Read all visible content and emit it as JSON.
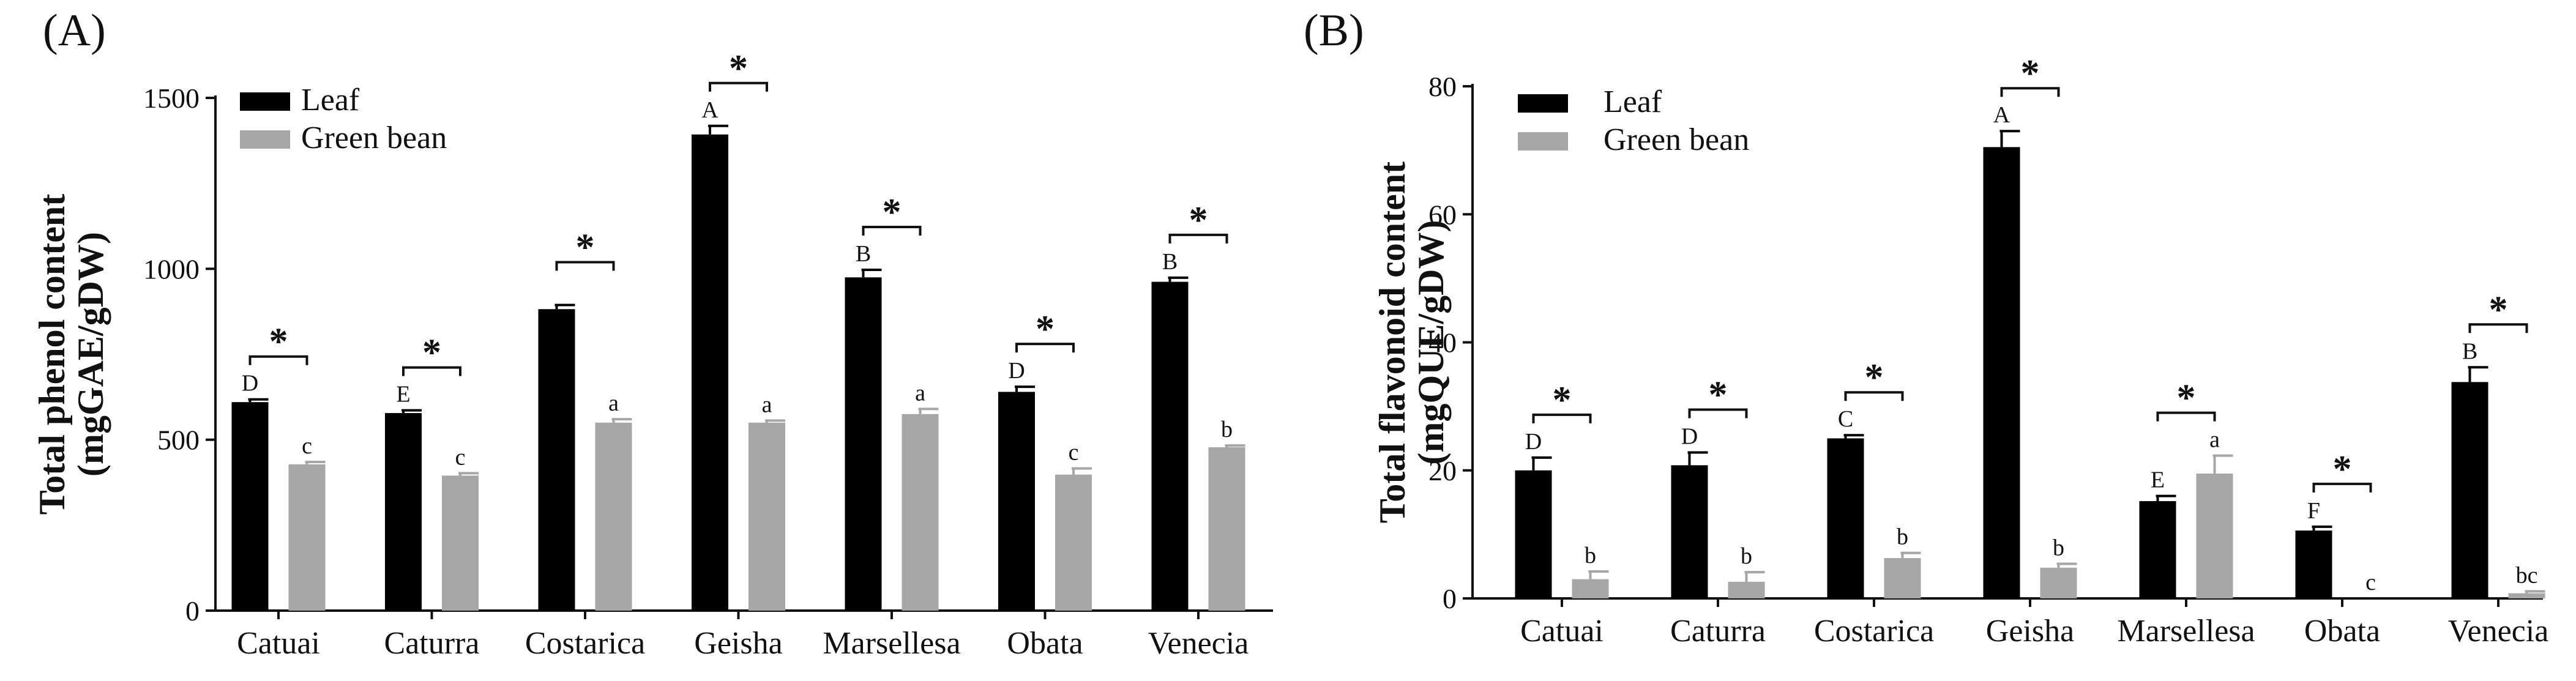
{
  "chart_data": [
    {
      "panel": "(A)",
      "type": "bar",
      "ylabel_line1": "Total phenol content",
      "ylabel_line2": "(mgGAE/gDW)",
      "ylim": [
        0,
        1500
      ],
      "yticks": [
        0,
        500,
        1000,
        1500
      ],
      "categories": [
        "Catuai",
        "Caturra",
        "Costarica",
        "Geisha",
        "Marsellesa",
        "Obata",
        "Venecia"
      ],
      "series": [
        {
          "name": "Leaf",
          "color": "#000000",
          "values": [
            610,
            578,
            882,
            1393,
            975,
            640,
            962
          ],
          "errors": [
            8,
            8,
            12,
            25,
            22,
            15,
            12
          ],
          "letters": [
            "D",
            "E",
            "",
            "A",
            "B",
            "D",
            "B"
          ]
        },
        {
          "name": "Green bean",
          "color": "#a6a6a6",
          "values": [
            428,
            395,
            550,
            550,
            575,
            398,
            478
          ],
          "errors": [
            7,
            7,
            10,
            6,
            15,
            18,
            5
          ],
          "letters": [
            "c",
            "c",
            "a",
            "a",
            "a",
            "c",
            "b"
          ]
        }
      ],
      "significance": [
        "*",
        "*",
        "*",
        "*",
        "*",
        "*",
        "*"
      ]
    },
    {
      "panel": "(B)",
      "type": "bar",
      "ylabel_line1": "Total flavonoid content",
      "ylabel_line2": "(mgQUE/gDW)",
      "ylim": [
        0,
        80
      ],
      "yticks": [
        0,
        20,
        40,
        60,
        80
      ],
      "categories": [
        "Catuai",
        "Caturra",
        "Costarica",
        "Geisha",
        "Marsellesa",
        "Obata",
        "Venecia"
      ],
      "series": [
        {
          "name": "Leaf",
          "color": "#000000",
          "values": [
            20.0,
            20.8,
            25.0,
            70.5,
            15.2,
            10.6,
            33.8
          ],
          "errors": [
            2.0,
            2.0,
            0.5,
            2.5,
            0.8,
            0.6,
            2.3
          ],
          "letters": [
            "D",
            "D",
            "C",
            "A",
            "E",
            "F",
            "B"
          ]
        },
        {
          "name": "Green bean",
          "color": "#a6a6a6",
          "values": [
            3.0,
            2.6,
            6.3,
            4.8,
            19.5,
            0,
            0.8
          ],
          "errors": [
            1.2,
            1.5,
            0.8,
            0.6,
            2.8,
            0,
            0.3
          ],
          "letters": [
            "b",
            "b",
            "b",
            "b",
            "a",
            "c",
            "bc"
          ]
        }
      ],
      "significance": [
        "*",
        "*",
        "*",
        "*",
        "*",
        "*",
        "*"
      ]
    }
  ]
}
